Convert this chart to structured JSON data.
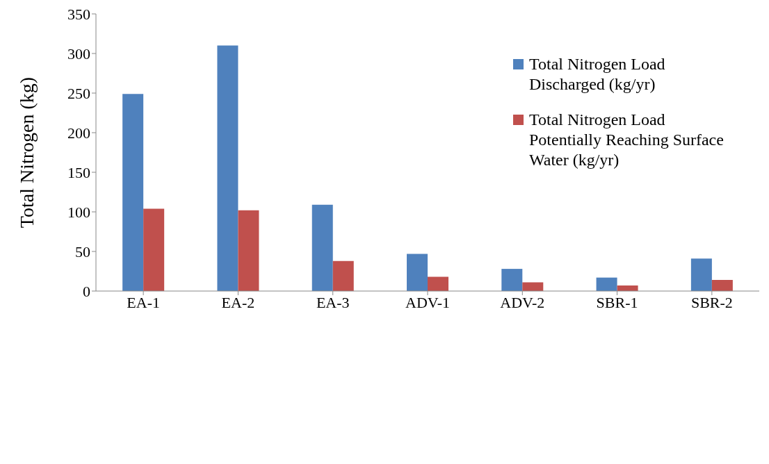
{
  "chart_data": {
    "type": "bar",
    "ylabel": "Total Nitrogen (kg)",
    "categories": [
      "EA-1",
      "EA-2",
      "EA-3",
      "ADV-1",
      "ADV-2",
      "SBR-1",
      "SBR-2"
    ],
    "series": [
      {
        "name": "Total Nitrogen Load Discharged (kg/yr)",
        "color": "#4f81bd",
        "values": [
          249,
          310,
          109,
          47,
          28,
          17,
          41
        ]
      },
      {
        "name": "Total Nitrogen Load Potentially Reaching Surface Water (kg/yr)",
        "color": "#c0504d",
        "values": [
          104,
          102,
          38,
          18,
          11,
          7,
          14
        ]
      }
    ],
    "ylim": [
      0,
      350
    ],
    "yticks": [
      0,
      50,
      100,
      150,
      200,
      250,
      300,
      350
    ],
    "grid": false,
    "legend": "top right"
  }
}
